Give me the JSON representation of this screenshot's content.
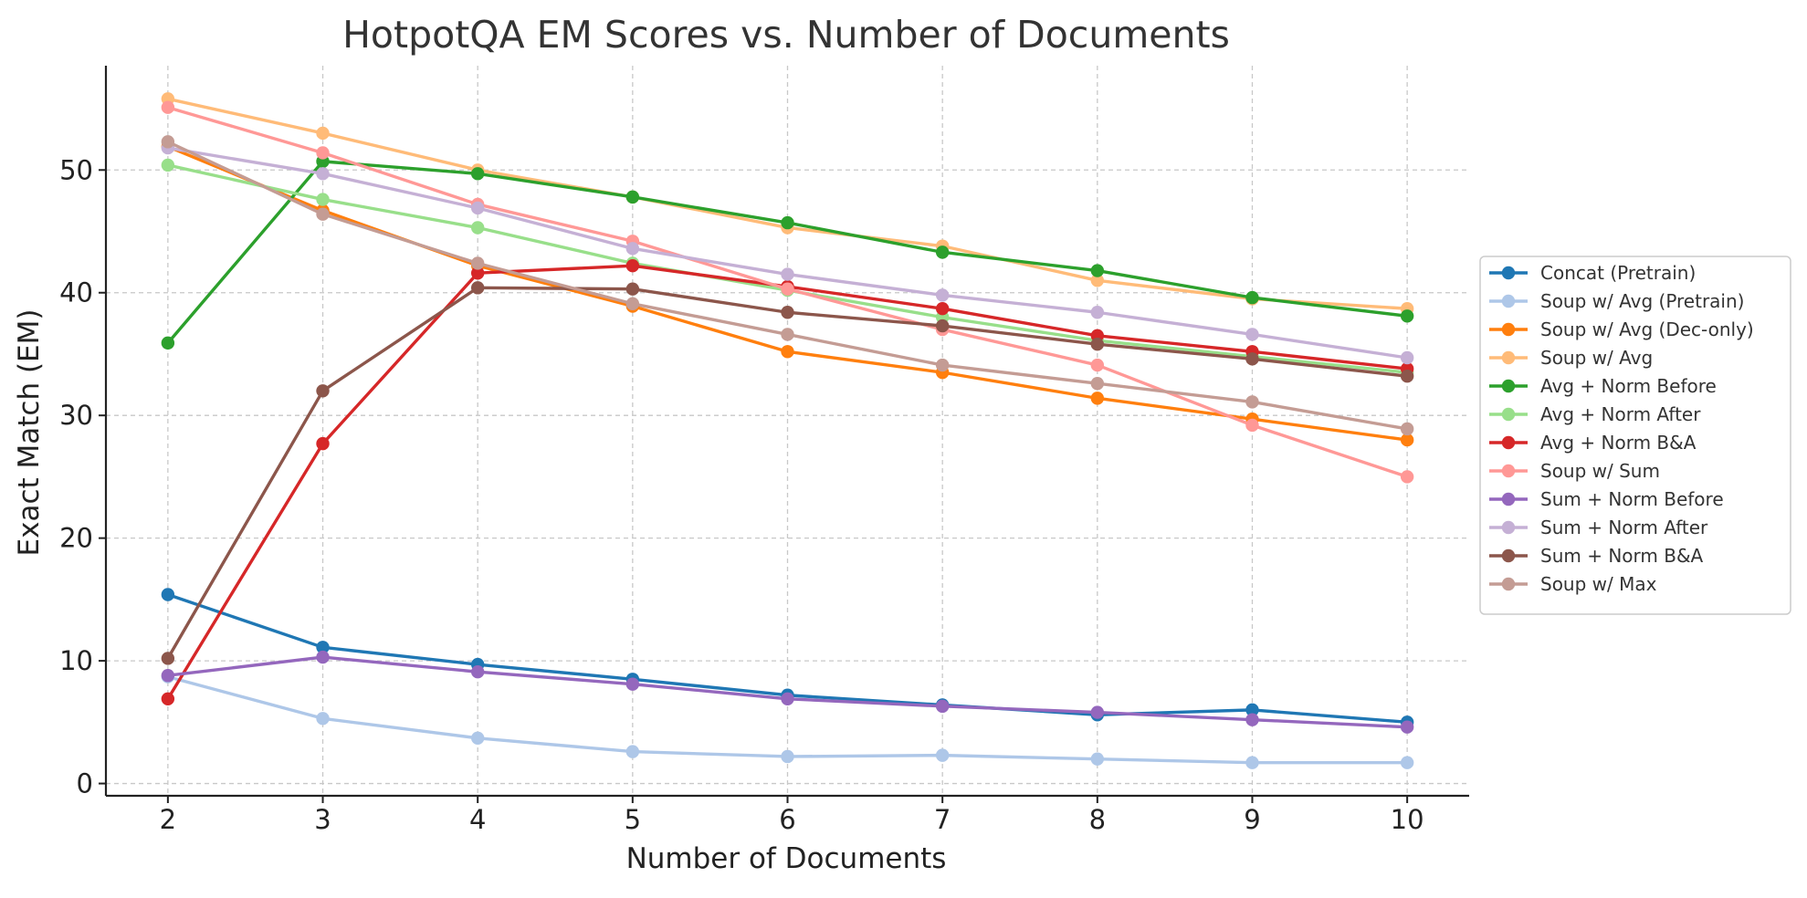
{
  "chart_data": {
    "type": "line",
    "title": "HotpotQA EM Scores vs. Number of Documents",
    "xlabel": "Number of Documents",
    "ylabel": "Exact Match (EM)",
    "x": [
      2,
      3,
      4,
      5,
      6,
      7,
      8,
      9,
      10
    ],
    "xlim": [
      1.6,
      10.4
    ],
    "ylim": [
      -1,
      58.5
    ],
    "yticks": [
      0,
      10,
      20,
      30,
      40,
      50
    ],
    "grid": true,
    "legend_position": "right",
    "series": [
      {
        "name": "Concat (Pretrain)",
        "color": "#1f77b4",
        "values": [
          15.4,
          11.1,
          9.7,
          8.5,
          7.2,
          6.4,
          5.6,
          6.0,
          5.0
        ]
      },
      {
        "name": "Soup w/ Avg (Pretrain)",
        "color": "#aec7e8",
        "values": [
          8.7,
          5.3,
          3.7,
          2.6,
          2.2,
          2.3,
          2.0,
          1.7,
          1.7
        ]
      },
      {
        "name": "Soup w/ Avg (Dec-only)",
        "color": "#ff7f0e",
        "values": [
          51.9,
          46.7,
          42.2,
          38.9,
          35.2,
          33.5,
          31.4,
          29.7,
          28.0
        ]
      },
      {
        "name": "Soup w/ Avg",
        "color": "#ffbb78",
        "values": [
          55.8,
          53.0,
          50.0,
          47.8,
          45.3,
          43.8,
          41.0,
          39.5,
          38.7
        ]
      },
      {
        "name": "Avg + Norm Before",
        "color": "#2ca02c",
        "values": [
          35.9,
          50.7,
          49.7,
          47.8,
          45.7,
          43.3,
          41.8,
          39.6,
          38.1
        ]
      },
      {
        "name": "Avg + Norm After",
        "color": "#98df8a",
        "values": [
          50.4,
          47.6,
          45.3,
          42.4,
          40.2,
          38.0,
          36.1,
          34.8,
          33.5
        ]
      },
      {
        "name": "Avg + Norm B&A",
        "color": "#d62728",
        "values": [
          6.9,
          27.7,
          41.6,
          42.2,
          40.5,
          38.7,
          36.5,
          35.2,
          33.8
        ]
      },
      {
        "name": "Soup w/ Sum",
        "color": "#ff9896",
        "values": [
          55.1,
          51.4,
          47.2,
          44.2,
          40.3,
          37.0,
          34.1,
          29.2,
          25.0
        ]
      },
      {
        "name": "Sum + Norm Before",
        "color": "#9467bd",
        "values": [
          8.8,
          10.3,
          9.1,
          8.1,
          6.9,
          6.3,
          5.8,
          5.2,
          4.6
        ]
      },
      {
        "name": "Sum + Norm After",
        "color": "#c5b0d5",
        "values": [
          51.8,
          49.7,
          46.9,
          43.6,
          41.5,
          39.8,
          38.4,
          36.6,
          34.7
        ]
      },
      {
        "name": "Sum + Norm B&A",
        "color": "#8c564b",
        "values": [
          10.2,
          32.0,
          40.4,
          40.3,
          38.4,
          37.3,
          35.8,
          34.6,
          33.2
        ]
      },
      {
        "name": "Soup w/ Max",
        "color": "#c49c94",
        "values": [
          52.3,
          46.4,
          42.4,
          39.1,
          36.6,
          34.1,
          32.6,
          31.1,
          28.9
        ]
      }
    ]
  }
}
